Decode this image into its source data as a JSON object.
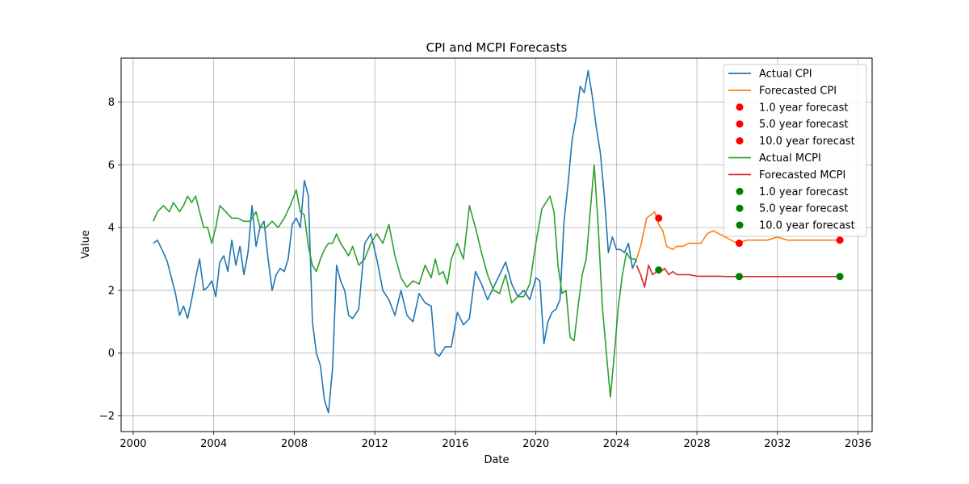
{
  "chart_data": {
    "type": "line",
    "title": "CPI and MCPI Forecasts",
    "xlabel": "Date",
    "ylabel": "Value",
    "xlim": [
      1999.4,
      2036.7
    ],
    "ylim": [
      -2.5,
      9.4
    ],
    "x_ticks": [
      2000,
      2004,
      2008,
      2012,
      2016,
      2020,
      2024,
      2028,
      2032,
      2036
    ],
    "y_ticks": [
      -2,
      0,
      2,
      4,
      6,
      8
    ],
    "x_tick_labels": [
      "2000",
      "2004",
      "2008",
      "2012",
      "2016",
      "2020",
      "2024",
      "2028",
      "2032",
      "2036"
    ],
    "y_tick_labels": [
      "−2",
      "0",
      "2",
      "4",
      "6",
      "8"
    ],
    "grid": true,
    "legend_position": "top-right",
    "series": [
      {
        "name": "Actual CPI",
        "kind": "line",
        "color": "#1f77b4",
        "x": [
          2001.0,
          2001.2,
          2001.5,
          2001.7,
          2001.9,
          2002.1,
          2002.3,
          2002.5,
          2002.7,
          2002.9,
          2003.1,
          2003.3,
          2003.5,
          2003.7,
          2003.9,
          2004.1,
          2004.3,
          2004.5,
          2004.7,
          2004.9,
          2005.1,
          2005.3,
          2005.5,
          2005.7,
          2005.9,
          2006.1,
          2006.3,
          2006.5,
          2006.7,
          2006.9,
          2007.1,
          2007.3,
          2007.5,
          2007.7,
          2007.9,
          2008.1,
          2008.3,
          2008.5,
          2008.7,
          2008.9,
          2009.1,
          2009.3,
          2009.5,
          2009.7,
          2009.9,
          2010.1,
          2010.3,
          2010.5,
          2010.7,
          2010.9,
          2011.2,
          2011.5,
          2011.8,
          2012.1,
          2012.4,
          2012.7,
          2013.0,
          2013.3,
          2013.6,
          2013.9,
          2014.2,
          2014.5,
          2014.8,
          2015.0,
          2015.2,
          2015.5,
          2015.8,
          2016.1,
          2016.4,
          2016.7,
          2017.0,
          2017.3,
          2017.6,
          2017.9,
          2018.2,
          2018.5,
          2018.8,
          2019.1,
          2019.4,
          2019.7,
          2020.0,
          2020.2,
          2020.4,
          2020.6,
          2020.8,
          2021.0,
          2021.2,
          2021.4,
          2021.6,
          2021.8,
          2022.0,
          2022.2,
          2022.4,
          2022.6,
          2022.8,
          2023.0,
          2023.2,
          2023.4,
          2023.6,
          2023.8,
          2024.0,
          2024.2,
          2024.4,
          2024.6,
          2024.8,
          2025.0
        ],
        "y": [
          3.5,
          3.6,
          3.2,
          2.9,
          2.4,
          1.9,
          1.2,
          1.5,
          1.1,
          1.7,
          2.4,
          3.0,
          2.0,
          2.1,
          2.3,
          1.8,
          2.9,
          3.1,
          2.6,
          3.6,
          2.8,
          3.4,
          2.5,
          3.2,
          4.7,
          3.4,
          4.0,
          4.2,
          3.0,
          2.0,
          2.5,
          2.7,
          2.6,
          3.0,
          4.1,
          4.3,
          4.0,
          5.5,
          5.0,
          1.0,
          0.0,
          -0.4,
          -1.5,
          -1.9,
          -0.5,
          2.8,
          2.3,
          2.0,
          1.2,
          1.1,
          1.4,
          3.5,
          3.8,
          3.0,
          2.0,
          1.7,
          1.2,
          2.0,
          1.2,
          1.0,
          1.9,
          1.6,
          1.5,
          0.0,
          -0.1,
          0.2,
          0.2,
          1.3,
          0.9,
          1.1,
          2.6,
          2.2,
          1.7,
          2.1,
          2.5,
          2.9,
          2.2,
          1.8,
          2.0,
          1.7,
          2.4,
          2.3,
          0.3,
          1.0,
          1.3,
          1.4,
          1.7,
          4.2,
          5.4,
          6.8,
          7.5,
          8.5,
          8.3,
          9.0,
          8.2,
          7.2,
          6.4,
          5.0,
          3.2,
          3.7,
          3.3,
          3.3,
          3.2,
          3.5,
          2.7,
          3.0
        ]
      },
      {
        "name": "Forecasted CPI",
        "kind": "line",
        "color": "#ff7f0e",
        "x": [
          2025.0,
          2025.2,
          2025.5,
          2025.7,
          2025.9,
          2026.1,
          2026.3,
          2026.5,
          2026.8,
          2027.0,
          2027.3,
          2027.6,
          2027.9,
          2028.2,
          2028.5,
          2028.8,
          2029.1,
          2029.4,
          2029.7,
          2030.0,
          2030.5,
          2031.0,
          2031.5,
          2032.0,
          2032.5,
          2033.0,
          2033.5,
          2034.0,
          2034.5,
          2035.0
        ],
        "y": [
          3.0,
          3.4,
          4.3,
          4.4,
          4.5,
          4.1,
          3.9,
          3.4,
          3.3,
          3.4,
          3.4,
          3.5,
          3.5,
          3.5,
          3.8,
          3.9,
          3.8,
          3.7,
          3.6,
          3.5,
          3.6,
          3.6,
          3.6,
          3.7,
          3.6,
          3.6,
          3.6,
          3.6,
          3.6,
          3.6
        ]
      },
      {
        "name": "1.0 year forecast",
        "kind": "scatter",
        "color": "#ff0000",
        "x": [
          2026.1
        ],
        "y": [
          4.3
        ]
      },
      {
        "name": "5.0 year forecast",
        "kind": "scatter",
        "color": "#ff0000",
        "x": [
          2030.1
        ],
        "y": [
          3.5
        ]
      },
      {
        "name": "10.0 year forecast",
        "kind": "scatter",
        "color": "#ff0000",
        "x": [
          2035.1
        ],
        "y": [
          3.6
        ]
      },
      {
        "name": "Actual MCPI",
        "kind": "line",
        "color": "#2ca02c",
        "x": [
          2001.0,
          2001.2,
          2001.5,
          2001.8,
          2002.0,
          2002.3,
          2002.5,
          2002.7,
          2002.9,
          2003.1,
          2003.3,
          2003.5,
          2003.7,
          2003.9,
          2004.1,
          2004.3,
          2004.6,
          2004.9,
          2005.2,
          2005.5,
          2005.8,
          2006.1,
          2006.3,
          2006.6,
          2006.9,
          2007.2,
          2007.5,
          2007.8,
          2008.1,
          2008.3,
          2008.5,
          2008.7,
          2008.9,
          2009.1,
          2009.3,
          2009.5,
          2009.7,
          2009.9,
          2010.1,
          2010.3,
          2010.5,
          2010.7,
          2010.9,
          2011.2,
          2011.5,
          2011.8,
          2012.1,
          2012.4,
          2012.7,
          2013.0,
          2013.3,
          2013.6,
          2013.9,
          2014.2,
          2014.5,
          2014.8,
          2015.0,
          2015.2,
          2015.4,
          2015.6,
          2015.8,
          2016.1,
          2016.4,
          2016.7,
          2017.0,
          2017.3,
          2017.6,
          2017.9,
          2018.2,
          2018.5,
          2018.8,
          2019.1,
          2019.4,
          2019.7,
          2020.0,
          2020.3,
          2020.5,
          2020.7,
          2020.9,
          2021.1,
          2021.3,
          2021.5,
          2021.7,
          2021.9,
          2022.1,
          2022.3,
          2022.5,
          2022.7,
          2022.9,
          2023.1,
          2023.3,
          2023.5,
          2023.7,
          2023.9,
          2024.1,
          2024.3,
          2024.5,
          2024.7,
          2024.9,
          2025.0
        ],
        "y": [
          4.2,
          4.5,
          4.7,
          4.5,
          4.8,
          4.5,
          4.7,
          5.0,
          4.8,
          5.0,
          4.5,
          4.0,
          4.0,
          3.5,
          4.0,
          4.7,
          4.5,
          4.3,
          4.3,
          4.2,
          4.2,
          4.5,
          4.0,
          4.0,
          4.2,
          4.0,
          4.3,
          4.7,
          5.2,
          4.5,
          4.4,
          3.4,
          2.8,
          2.6,
          3.0,
          3.3,
          3.5,
          3.5,
          3.8,
          3.5,
          3.3,
          3.1,
          3.4,
          2.8,
          3.0,
          3.5,
          3.8,
          3.5,
          4.1,
          3.1,
          2.4,
          2.1,
          2.3,
          2.2,
          2.8,
          2.4,
          3.0,
          2.5,
          2.6,
          2.2,
          3.0,
          3.5,
          3.0,
          4.7,
          4.0,
          3.2,
          2.5,
          2.0,
          1.9,
          2.5,
          1.6,
          1.8,
          1.8,
          2.2,
          3.5,
          4.6,
          4.8,
          5.0,
          4.5,
          2.8,
          1.9,
          2.0,
          0.5,
          0.4,
          1.5,
          2.5,
          3.0,
          4.5,
          6.0,
          4.0,
          1.5,
          0.0,
          -1.4,
          0.0,
          1.5,
          2.5,
          3.2,
          3.0,
          3.0,
          2.9
        ]
      },
      {
        "name": "Forecasted MCPI",
        "kind": "line",
        "color": "#d62728",
        "x": [
          2025.0,
          2025.2,
          2025.4,
          2025.6,
          2025.8,
          2026.0,
          2026.2,
          2026.4,
          2026.6,
          2026.8,
          2027.0,
          2027.3,
          2027.6,
          2028.0,
          2028.5,
          2029.0,
          2029.5,
          2030.0,
          2031.0,
          2032.0,
          2033.0,
          2034.0,
          2035.0
        ],
        "y": [
          2.8,
          2.5,
          2.1,
          2.8,
          2.5,
          2.6,
          2.6,
          2.7,
          2.5,
          2.6,
          2.5,
          2.5,
          2.5,
          2.45,
          2.45,
          2.45,
          2.44,
          2.44,
          2.44,
          2.44,
          2.44,
          2.44,
          2.44
        ]
      },
      {
        "name": "1.0 year forecast",
        "kind": "scatter",
        "color": "#008000",
        "x": [
          2026.1
        ],
        "y": [
          2.65
        ]
      },
      {
        "name": "5.0 year forecast",
        "kind": "scatter",
        "color": "#008000",
        "x": [
          2030.1
        ],
        "y": [
          2.44
        ]
      },
      {
        "name": "10.0 year forecast",
        "kind": "scatter",
        "color": "#008000",
        "x": [
          2035.1
        ],
        "y": [
          2.44
        ]
      }
    ]
  }
}
